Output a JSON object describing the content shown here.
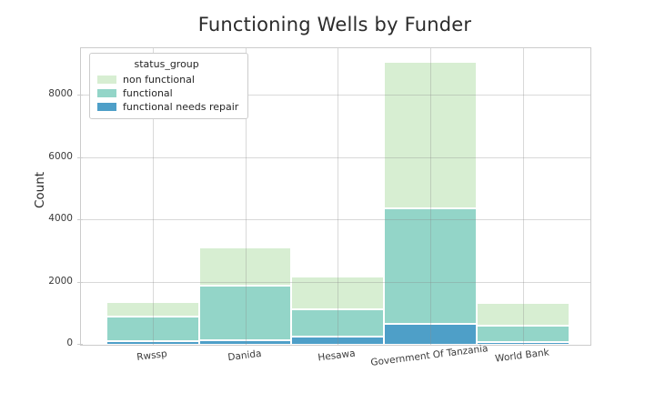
{
  "chart_data": {
    "type": "bar",
    "stacked": true,
    "title": "Functioning Wells by Funder",
    "xlabel": "",
    "ylabel": "Count",
    "categories": [
      "Rwssp",
      "Danida",
      "Hesawa",
      "Government Of Tanzania",
      "World Bank"
    ],
    "series": [
      {
        "name": "functional needs repair",
        "color": "#4e9fc8",
        "values": [
          110,
          160,
          270,
          680,
          100
        ]
      },
      {
        "name": "functional",
        "color": "#93d5c8",
        "values": [
          800,
          1730,
          880,
          3710,
          500
        ]
      },
      {
        "name": "non functional",
        "color": "#d7eed2",
        "values": [
          465,
          1230,
          1050,
          4690,
          750
        ]
      }
    ],
    "stack_order_bottom_to_top": [
      "functional needs repair",
      "functional",
      "non functional"
    ],
    "category_totals": [
      1375,
      3120,
      2200,
      9080,
      1350
    ],
    "y_ticks": [
      0,
      2000,
      4000,
      6000,
      8000
    ],
    "ylim": [
      0,
      9520
    ],
    "grid": true,
    "x_tick_rotation_deg": -7,
    "legend": {
      "title": "status_group",
      "position": "upper left",
      "entries": [
        {
          "label": "non functional",
          "color": "#d7eed2"
        },
        {
          "label": "functional",
          "color": "#93d5c8"
        },
        {
          "label": "functional needs repair",
          "color": "#4e9fc8"
        }
      ]
    },
    "colors": {
      "grid": "#cccccc",
      "spine": "#cccccc",
      "text": "#262626"
    }
  }
}
